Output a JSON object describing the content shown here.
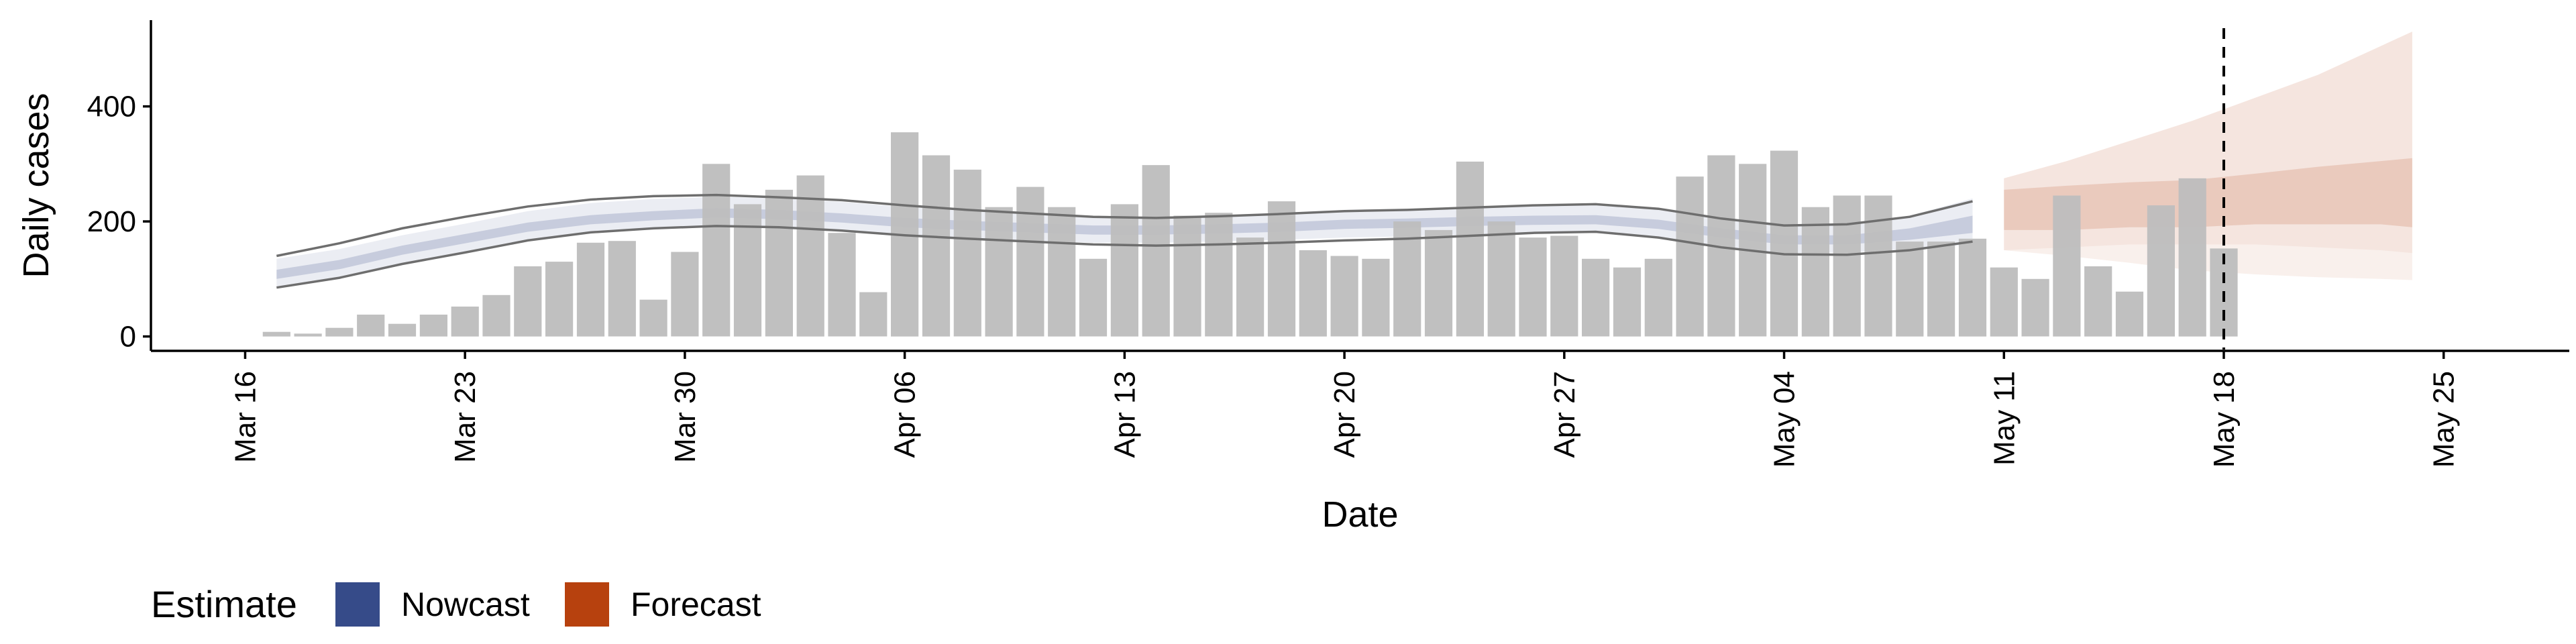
{
  "chart_data": {
    "type": "bar",
    "xlabel": "Date",
    "ylabel": "Daily cases",
    "ylim": [
      -25,
      550
    ],
    "yticks": [
      0,
      200,
      400
    ],
    "x_tick_labels": [
      "Mar 16",
      "Mar 23",
      "Mar 30",
      "Apr 06",
      "Apr 13",
      "Apr 20",
      "Apr 27",
      "May 04",
      "May 11",
      "May 18",
      "May 25"
    ],
    "x_tick_dates": [
      "2020-03-16",
      "2020-03-23",
      "2020-03-30",
      "2020-04-06",
      "2020-04-13",
      "2020-04-20",
      "2020-04-27",
      "2020-05-04",
      "2020-05-11",
      "2020-05-18",
      "2020-05-25"
    ],
    "xlim": [
      "2020-03-13",
      "2020-05-29"
    ],
    "forecast_marker_date": "2020-05-18",
    "bars": {
      "name": "Daily cases",
      "color": "#bdbdbd",
      "dates": [
        "2020-03-17",
        "2020-03-18",
        "2020-03-19",
        "2020-03-20",
        "2020-03-21",
        "2020-03-22",
        "2020-03-23",
        "2020-03-24",
        "2020-03-25",
        "2020-03-26",
        "2020-03-27",
        "2020-03-28",
        "2020-03-29",
        "2020-03-30",
        "2020-03-31",
        "2020-04-01",
        "2020-04-02",
        "2020-04-03",
        "2020-04-04",
        "2020-04-05",
        "2020-04-06",
        "2020-04-07",
        "2020-04-08",
        "2020-04-09",
        "2020-04-10",
        "2020-04-11",
        "2020-04-12",
        "2020-04-13",
        "2020-04-14",
        "2020-04-15",
        "2020-04-16",
        "2020-04-17",
        "2020-04-18",
        "2020-04-19",
        "2020-04-20",
        "2020-04-21",
        "2020-04-22",
        "2020-04-23",
        "2020-04-24",
        "2020-04-25",
        "2020-04-26",
        "2020-04-27",
        "2020-04-28",
        "2020-04-29",
        "2020-04-30",
        "2020-05-01",
        "2020-05-02",
        "2020-05-03",
        "2020-05-04",
        "2020-05-05",
        "2020-05-06",
        "2020-05-07",
        "2020-05-08",
        "2020-05-09",
        "2020-05-10",
        "2020-05-11",
        "2020-05-12",
        "2020-05-13",
        "2020-05-14",
        "2020-05-15",
        "2020-05-16",
        "2020-05-17",
        "2020-05-18"
      ],
      "values": [
        8,
        5,
        15,
        38,
        22,
        38,
        52,
        72,
        122,
        130,
        163,
        166,
        64,
        147,
        300,
        230,
        255,
        280,
        180,
        77,
        355,
        315,
        290,
        225,
        260,
        225,
        135,
        230,
        298,
        210,
        215,
        172,
        235,
        150,
        140,
        135,
        200,
        185,
        304,
        200,
        172,
        175,
        135,
        120,
        135,
        278,
        315,
        300,
        323,
        225,
        245,
        245,
        165,
        165,
        170,
        120,
        100,
        245,
        122,
        78,
        228,
        275,
        153
      ]
    },
    "nowcast": {
      "name": "Nowcast",
      "color": "#364b89",
      "dates": [
        "2020-03-17",
        "2020-03-19",
        "2020-03-21",
        "2020-03-23",
        "2020-03-25",
        "2020-03-27",
        "2020-03-29",
        "2020-03-31",
        "2020-04-02",
        "2020-04-04",
        "2020-04-06",
        "2020-04-08",
        "2020-04-10",
        "2020-04-12",
        "2020-04-14",
        "2020-04-16",
        "2020-04-18",
        "2020-04-20",
        "2020-04-22",
        "2020-04-24",
        "2020-04-26",
        "2020-04-28",
        "2020-04-30",
        "2020-05-02",
        "2020-05-04",
        "2020-05-06",
        "2020-05-08",
        "2020-05-10"
      ],
      "median": [
        108,
        125,
        150,
        170,
        190,
        203,
        210,
        215,
        212,
        206,
        198,
        193,
        189,
        185,
        185,
        187,
        190,
        195,
        197,
        200,
        202,
        203,
        195,
        180,
        168,
        168,
        178,
        195
      ],
      "inner_low": [
        100,
        117,
        142,
        162,
        182,
        195,
        202,
        207,
        204,
        198,
        190,
        185,
        181,
        177,
        177,
        179,
        182,
        187,
        189,
        192,
        194,
        195,
        187,
        172,
        160,
        160,
        168,
        180
      ],
      "inner_high": [
        116,
        133,
        158,
        178,
        198,
        211,
        218,
        223,
        220,
        214,
        206,
        201,
        197,
        193,
        193,
        195,
        198,
        203,
        205,
        208,
        210,
        211,
        203,
        188,
        176,
        176,
        188,
        210
      ],
      "outer_low": [
        87,
        104,
        127,
        147,
        168,
        181,
        188,
        192,
        190,
        184,
        176,
        171,
        167,
        163,
        163,
        165,
        168,
        172,
        174,
        177,
        179,
        180,
        172,
        157,
        145,
        146,
        152,
        160
      ],
      "outer_high": [
        135,
        152,
        176,
        196,
        218,
        232,
        239,
        243,
        240,
        234,
        225,
        218,
        213,
        208,
        208,
        211,
        215,
        220,
        222,
        225,
        227,
        228,
        220,
        205,
        193,
        194,
        210,
        240
      ]
    },
    "nowcast_interval_lines": {
      "color": "#6e6e6e",
      "dates": [
        "2020-03-17",
        "2020-03-19",
        "2020-03-21",
        "2020-03-23",
        "2020-03-25",
        "2020-03-27",
        "2020-03-29",
        "2020-03-31",
        "2020-04-02",
        "2020-04-04",
        "2020-04-06",
        "2020-04-08",
        "2020-04-10",
        "2020-04-12",
        "2020-04-14",
        "2020-04-16",
        "2020-04-18",
        "2020-04-20",
        "2020-04-22",
        "2020-04-24",
        "2020-04-26",
        "2020-04-28",
        "2020-04-30",
        "2020-05-02",
        "2020-05-04",
        "2020-05-06",
        "2020-05-08",
        "2020-05-10"
      ],
      "upper": [
        140,
        162,
        188,
        208,
        226,
        238,
        244,
        246,
        242,
        237,
        228,
        220,
        214,
        208,
        206,
        209,
        213,
        218,
        220,
        224,
        228,
        230,
        222,
        205,
        193,
        195,
        208,
        235
      ],
      "lower": [
        85,
        102,
        126,
        146,
        167,
        181,
        188,
        192,
        190,
        184,
        176,
        170,
        165,
        160,
        158,
        160,
        163,
        167,
        170,
        175,
        180,
        182,
        172,
        155,
        143,
        142,
        150,
        165
      ]
    },
    "forecast": {
      "name": "Forecast",
      "color": "#b7410e",
      "dates": [
        "2020-05-11",
        "2020-05-13",
        "2020-05-15",
        "2020-05-17",
        "2020-05-19",
        "2020-05-21",
        "2020-05-23",
        "2020-05-24"
      ],
      "inner_low": [
        185,
        185,
        190,
        190,
        195,
        195,
        195,
        190
      ],
      "inner_high": [
        255,
        262,
        268,
        272,
        283,
        295,
        305,
        310
      ],
      "outer_low": [
        150,
        155,
        160,
        160,
        160,
        155,
        150,
        145
      ],
      "outer_high": [
        275,
        305,
        340,
        375,
        415,
        455,
        505,
        530
      ],
      "wide_low": [
        150,
        140,
        128,
        115,
        108,
        103,
        100,
        98
      ],
      "wide_high": [
        275,
        305,
        340,
        375,
        415,
        455,
        505,
        530
      ]
    },
    "legend": {
      "title": "Estimate",
      "position": "bottom-left",
      "items": [
        {
          "label": "Nowcast",
          "color": "#364b89"
        },
        {
          "label": "Forecast",
          "color": "#b7410e"
        }
      ]
    },
    "grid": false
  }
}
